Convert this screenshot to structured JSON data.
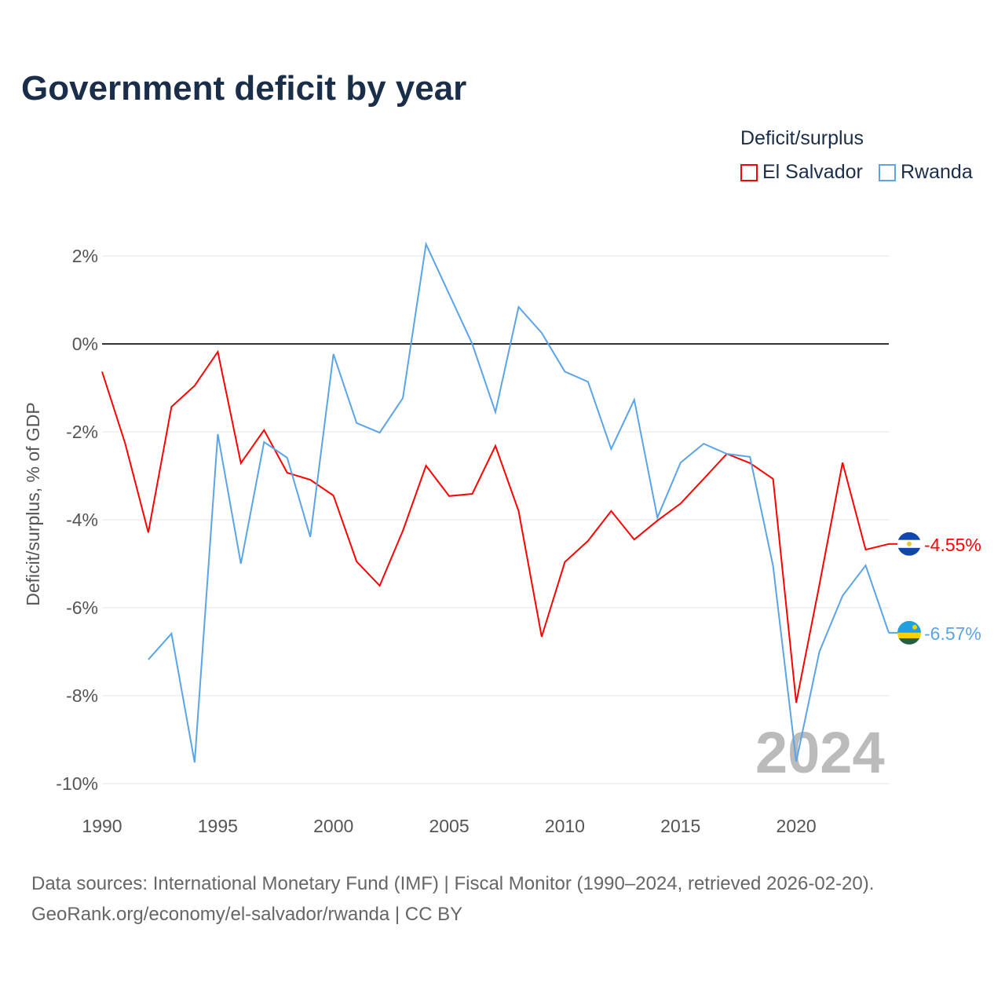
{
  "title": "Government deficit by year",
  "legend": {
    "title": "Deficit/surplus",
    "items": [
      "El Salvador",
      "Rwanda"
    ]
  },
  "footer": {
    "line1": "Data sources: International Monetary Fund (IMF) | Fiscal Monitor (1990–2024, retrieved 2026-02-20).",
    "line2": "GeoRank.org/economy/el-salvador/rwanda | CC BY"
  },
  "chart_data": {
    "type": "line",
    "title": "Government deficit by year",
    "xlabel": "",
    "ylabel": "Deficit/surplus, % of GDP",
    "xlim": [
      1990,
      2024
    ],
    "ylim": [
      -10,
      2
    ],
    "xticks": [
      1990,
      1995,
      2000,
      2005,
      2010,
      2015,
      2020
    ],
    "yticks": [
      2,
      0,
      -2,
      -4,
      -6,
      -8,
      -10
    ],
    "ytick_labels": [
      "2%",
      "0%",
      "-2%",
      "-4%",
      "-6%",
      "-8%",
      "-10%"
    ],
    "year_label": "2024",
    "x": [
      1990,
      1991,
      1992,
      1993,
      1994,
      1995,
      1996,
      1997,
      1998,
      1999,
      2000,
      2001,
      2002,
      2003,
      2004,
      2005,
      2006,
      2007,
      2008,
      2009,
      2010,
      2011,
      2012,
      2013,
      2014,
      2015,
      2016,
      2017,
      2018,
      2019,
      2020,
      2021,
      2022,
      2023,
      2024
    ],
    "series": [
      {
        "name": "El Salvador",
        "color": "#ff0000",
        "end_label": "-4.55%",
        "values": [
          -0.63,
          -2.27,
          -4.29,
          -1.43,
          -0.95,
          -0.18,
          -2.71,
          -1.96,
          -2.93,
          -3.09,
          -3.45,
          -4.95,
          -5.5,
          -4.25,
          -2.77,
          -3.46,
          -3.41,
          -2.32,
          -3.8,
          -6.66,
          -4.96,
          -4.48,
          -3.8,
          -4.45,
          -4.02,
          -3.63,
          -3.07,
          -2.5,
          -2.71,
          -3.07,
          -8.16,
          -5.48,
          -2.7,
          -4.68,
          -4.55
        ]
      },
      {
        "name": "Rwanda",
        "color": "#5ba4e8",
        "end_label": "-6.57%",
        "values": [
          null,
          null,
          -7.18,
          -6.59,
          -9.52,
          -2.05,
          -5.0,
          -2.23,
          -2.59,
          -4.39,
          -0.23,
          -1.8,
          -2.02,
          -1.23,
          2.27,
          1.13,
          0.0,
          -1.55,
          0.84,
          0.25,
          -0.63,
          -0.86,
          -2.39,
          -1.27,
          -3.95,
          -2.7,
          -2.27,
          -2.5,
          -2.57,
          -5.05,
          -9.5,
          -7.0,
          -5.73,
          -5.04,
          -6.57
        ]
      }
    ]
  }
}
